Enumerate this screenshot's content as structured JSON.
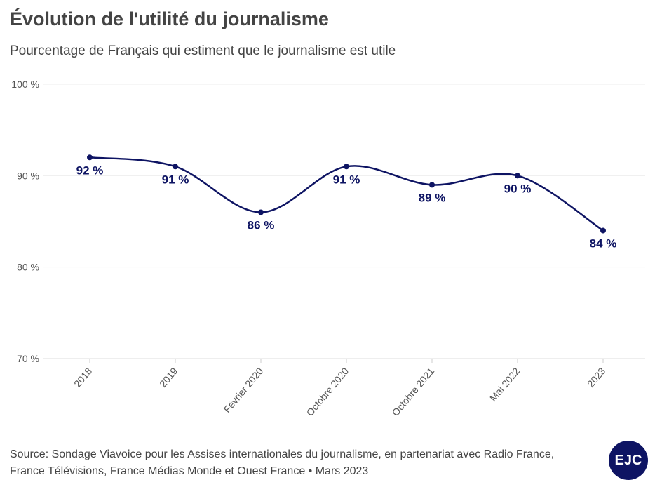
{
  "title": "Évolution de l'utilité du journalisme",
  "subtitle": "Pourcentage de Français qui estiment que le journalisme est utile",
  "source": "Source: Sondage Viavoice pour les Assises internationales du journalisme, en partenariat avec Radio France, France Télévisions, France Médias Monde et Ouest France • Mars 2023",
  "logo": "EJC",
  "chart_data": {
    "type": "line",
    "categories": [
      "2018",
      "2019",
      "Février 2020",
      "Octobre 2020",
      "Octobre 2021",
      "Mai 2022",
      "2023"
    ],
    "values": [
      92,
      91,
      86,
      91,
      89,
      90,
      84
    ],
    "data_labels": [
      "92 %",
      "91 %",
      "86 %",
      "91 %",
      "89 %",
      "90 %",
      "84 %"
    ],
    "ylim": [
      70,
      100
    ],
    "yticks": [
      70,
      80,
      90,
      100
    ],
    "ytick_labels": [
      "70 %",
      "80 %",
      "90 %",
      "100 %"
    ],
    "grid": true,
    "smooth": true,
    "color": "#0e1463"
  }
}
